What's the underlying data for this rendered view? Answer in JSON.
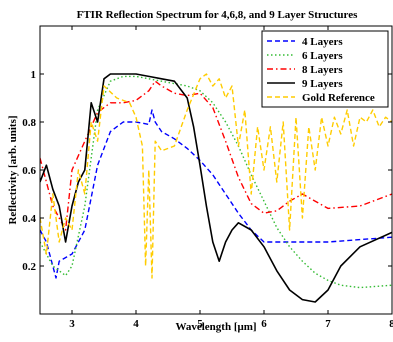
{
  "chart_data": {
    "type": "line",
    "title": "FTIR Reflection Spectrum for 4,6,8, and 9 Layer Structures",
    "xlabel": "Wavelength [μm]",
    "ylabel": "Reflectivity [arb. units]",
    "xlim": [
      2.5,
      8
    ],
    "ylim": [
      0,
      1.2
    ],
    "xticks": [
      3,
      4,
      5,
      6,
      7,
      8
    ],
    "yticks": [
      0.2,
      0.4,
      0.6,
      0.8,
      1
    ],
    "xtick_labels": [
      "3",
      "4",
      "5",
      "6",
      "7",
      "8"
    ],
    "ytick_labels": [
      "0.2",
      "0.4",
      "0.6",
      "0.8",
      "1"
    ],
    "grid": false,
    "legend_position": "top-right",
    "series": [
      {
        "name": "4 Layers",
        "color": "#0000ff",
        "dash": "dashed",
        "x": [
          2.5,
          2.6,
          2.7,
          2.75,
          2.8,
          3.0,
          3.2,
          3.4,
          3.6,
          3.8,
          4.0,
          4.2,
          4.25,
          4.3,
          4.4,
          4.6,
          4.8,
          5.0,
          5.2,
          5.4,
          5.6,
          5.8,
          6.0,
          6.2,
          6.5,
          7.0,
          7.5,
          8.0
        ],
        "y": [
          0.35,
          0.3,
          0.2,
          0.15,
          0.22,
          0.25,
          0.35,
          0.62,
          0.76,
          0.8,
          0.8,
          0.79,
          0.85,
          0.8,
          0.76,
          0.73,
          0.69,
          0.64,
          0.58,
          0.5,
          0.42,
          0.35,
          0.3,
          0.3,
          0.3,
          0.3,
          0.31,
          0.32
        ]
      },
      {
        "name": "6 Layers",
        "color": "#33bb33",
        "dash": "dotted",
        "x": [
          2.5,
          2.6,
          2.7,
          2.8,
          2.9,
          3.0,
          3.2,
          3.4,
          3.6,
          3.8,
          4.0,
          4.2,
          4.4,
          4.6,
          4.8,
          5.0,
          5.2,
          5.4,
          5.6,
          5.8,
          6.0,
          6.2,
          6.4,
          6.6,
          6.8,
          7.0,
          7.2,
          7.5,
          8.0
        ],
        "y": [
          0.3,
          0.25,
          0.2,
          0.18,
          0.16,
          0.2,
          0.45,
          0.85,
          0.97,
          0.99,
          0.99,
          0.98,
          0.97,
          0.96,
          0.95,
          0.93,
          0.88,
          0.8,
          0.7,
          0.58,
          0.47,
          0.36,
          0.28,
          0.22,
          0.17,
          0.14,
          0.12,
          0.11,
          0.12
        ]
      },
      {
        "name": "8 Layers",
        "color": "#ff0000",
        "dash": "dashdot",
        "x": [
          2.5,
          2.6,
          2.7,
          2.8,
          2.9,
          3.0,
          3.2,
          3.4,
          3.6,
          3.8,
          4.0,
          4.2,
          4.3,
          4.4,
          4.6,
          4.8,
          5.0,
          5.2,
          5.4,
          5.6,
          5.8,
          6.0,
          6.2,
          6.4,
          6.6,
          7.0,
          7.5,
          8.0
        ],
        "y": [
          0.65,
          0.55,
          0.45,
          0.4,
          0.35,
          0.6,
          0.72,
          0.84,
          0.88,
          0.88,
          0.89,
          0.93,
          0.97,
          0.95,
          0.92,
          0.91,
          0.92,
          0.86,
          0.72,
          0.57,
          0.46,
          0.42,
          0.43,
          0.47,
          0.5,
          0.44,
          0.45,
          0.5
        ]
      },
      {
        "name": "9 Layers",
        "color": "#000000",
        "dash": "solid",
        "x": [
          2.5,
          2.6,
          2.7,
          2.8,
          2.9,
          3.0,
          3.1,
          3.2,
          3.3,
          3.4,
          3.5,
          3.6,
          3.8,
          4.0,
          4.2,
          4.4,
          4.6,
          4.8,
          4.9,
          5.0,
          5.1,
          5.2,
          5.3,
          5.4,
          5.5,
          5.6,
          5.8,
          6.0,
          6.2,
          6.4,
          6.6,
          6.8,
          7.0,
          7.2,
          7.5,
          8.0
        ],
        "y": [
          0.55,
          0.62,
          0.52,
          0.45,
          0.3,
          0.45,
          0.55,
          0.6,
          0.88,
          0.8,
          0.98,
          1.0,
          1.0,
          1.0,
          0.99,
          0.98,
          0.97,
          0.9,
          0.78,
          0.62,
          0.45,
          0.3,
          0.22,
          0.3,
          0.35,
          0.38,
          0.35,
          0.28,
          0.18,
          0.1,
          0.06,
          0.05,
          0.1,
          0.2,
          0.28,
          0.34
        ]
      },
      {
        "name": "Gold Reference",
        "color": "#ffcc00",
        "dash": "dashed",
        "x": [
          2.5,
          2.6,
          2.7,
          2.8,
          2.9,
          3.0,
          3.1,
          3.2,
          3.3,
          3.4,
          3.5,
          3.7,
          3.9,
          4.0,
          4.1,
          4.15,
          4.2,
          4.25,
          4.3,
          4.4,
          4.6,
          4.8,
          5.0,
          5.1,
          5.2,
          5.3,
          5.4,
          5.5,
          5.6,
          5.7,
          5.8,
          5.9,
          6.0,
          6.1,
          6.2,
          6.3,
          6.4,
          6.5,
          6.6,
          6.7,
          6.8,
          6.9,
          7.0,
          7.1,
          7.2,
          7.3,
          7.4,
          7.5,
          7.6,
          7.7,
          7.8,
          7.9,
          8.0
        ],
        "y": [
          0.4,
          0.25,
          0.5,
          0.3,
          0.4,
          0.35,
          0.6,
          0.5,
          0.8,
          0.72,
          0.95,
          0.9,
          0.88,
          0.82,
          0.7,
          0.2,
          0.6,
          0.15,
          0.72,
          0.68,
          0.7,
          0.85,
          0.98,
          1.0,
          0.95,
          0.98,
          0.9,
          0.95,
          0.7,
          0.85,
          0.5,
          0.78,
          0.6,
          0.78,
          0.55,
          0.8,
          0.35,
          0.82,
          0.4,
          0.78,
          0.6,
          0.82,
          0.7,
          0.82,
          0.75,
          0.85,
          0.7,
          0.82,
          0.8,
          0.85,
          0.78,
          0.82,
          0.8
        ]
      }
    ]
  }
}
